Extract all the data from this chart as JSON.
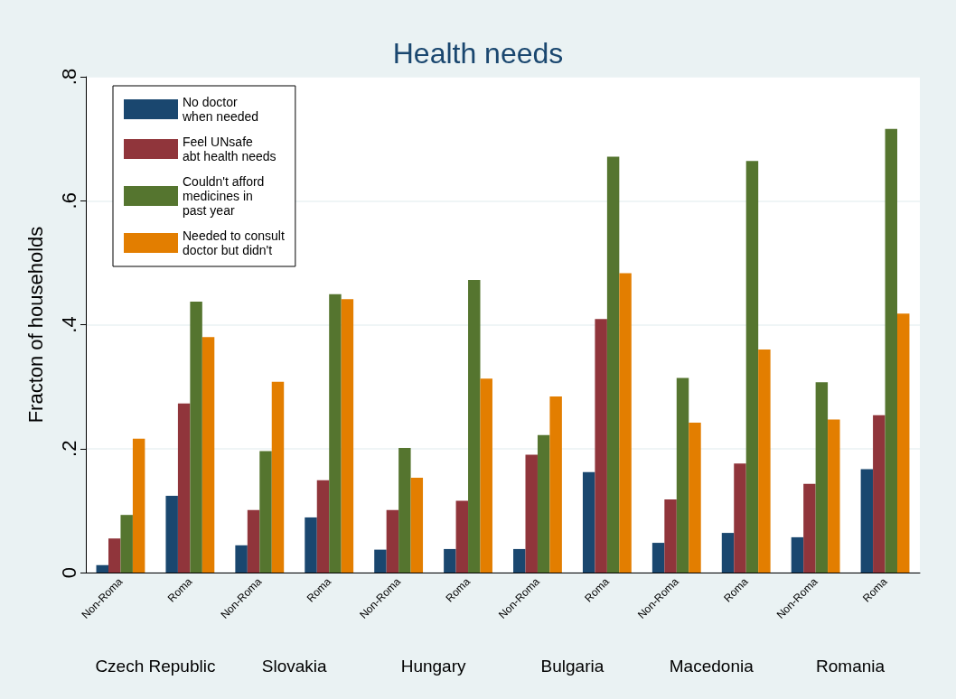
{
  "chart_data": {
    "type": "bar",
    "title": "Health needs",
    "ylabel": "Fracton of households",
    "categories": [
      "Non-Roma",
      "Roma",
      "Non-Roma",
      "Roma",
      "Non-Roma",
      "Roma",
      "Non-Roma",
      "Roma",
      "Non-Roma",
      "Roma",
      "Non-Roma",
      "Roma"
    ],
    "annotations": [
      "Czech Republic",
      "Slovakia",
      "Hungary",
      "Bulgaria",
      "Macedonia",
      "Romania"
    ],
    "series": [
      {
        "name": "No doctor\nwhen needed",
        "color": "#1a476f",
        "values": [
          0.012,
          0.124,
          0.044,
          0.089,
          0.037,
          0.038,
          0.038,
          0.162,
          0.048,
          0.064,
          0.057,
          0.167
        ]
      },
      {
        "name": "Feel UNsafe\nabt health needs",
        "color": "#90353b",
        "values": [
          0.055,
          0.273,
          0.101,
          0.149,
          0.101,
          0.116,
          0.19,
          0.409,
          0.118,
          0.176,
          0.143,
          0.254
        ]
      },
      {
        "name": "Couldn't afford\nmedicines in\npast year",
        "color": "#55752f",
        "values": [
          0.093,
          0.437,
          0.196,
          0.449,
          0.201,
          0.472,
          0.222,
          0.671,
          0.314,
          0.664,
          0.307,
          0.716
        ]
      },
      {
        "name": "Needed to consult\ndoctor but didn't",
        "color": "#e37e00",
        "values": [
          0.216,
          0.38,
          0.308,
          0.441,
          0.153,
          0.313,
          0.284,
          0.483,
          0.242,
          0.36,
          0.247,
          0.418
        ]
      }
    ],
    "ylim": [
      0,
      0.8
    ],
    "yticks": [
      {
        "value": 0,
        "label": "0"
      },
      {
        "value": 0.2,
        "label": ".2"
      },
      {
        "value": 0.4,
        "label": ".4"
      },
      {
        "value": 0.6,
        "label": ".6"
      },
      {
        "value": 0.8,
        "label": ".8"
      }
    ],
    "grid": "y",
    "legend": "top left"
  }
}
